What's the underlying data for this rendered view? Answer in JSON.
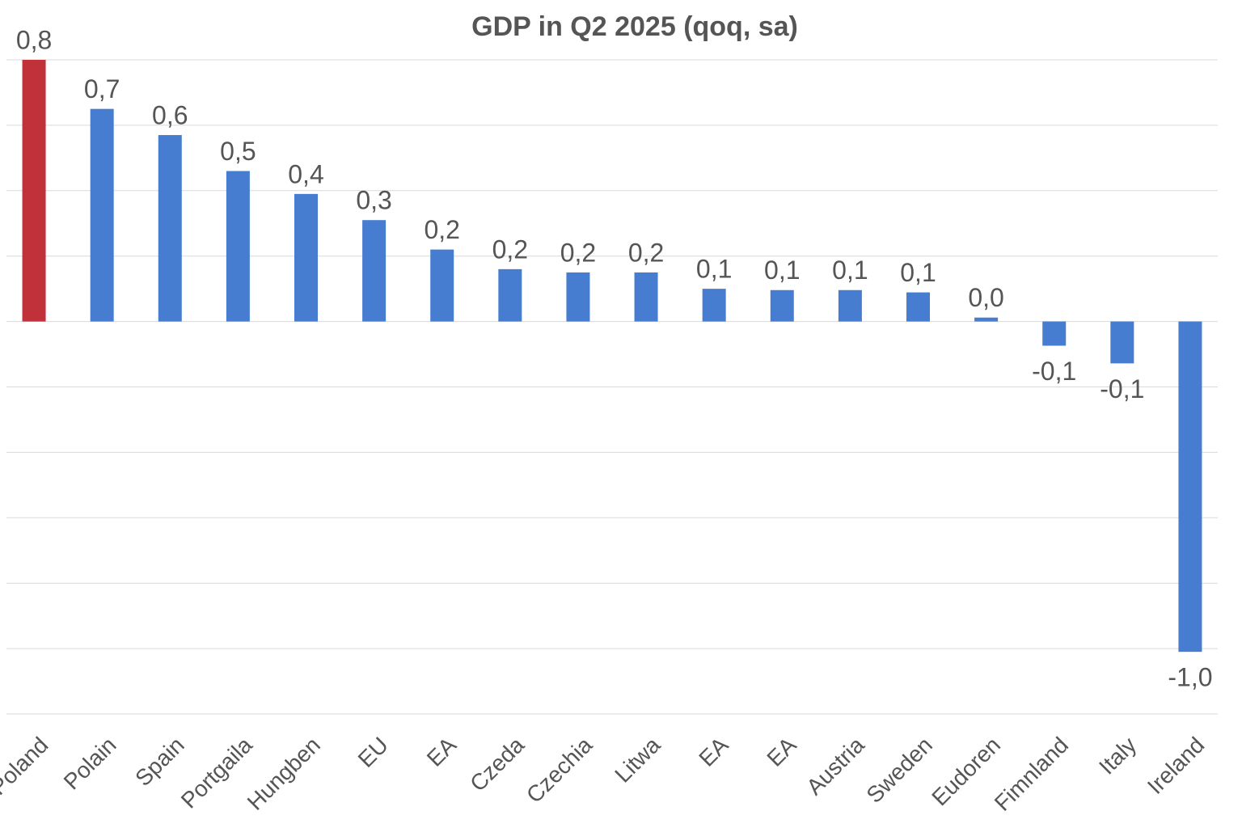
{
  "chart_data": {
    "type": "bar",
    "title": "GDP in Q2 2025 (qoq, sa)",
    "categories": [
      "Poland",
      "Polain",
      "Spain",
      "Portgaila",
      "Hungben",
      "EU",
      "EA",
      "Czeda",
      "Czechia",
      "Litwa",
      "EA",
      "EA",
      "Austria",
      "Sweden",
      "Eudoren",
      "Fimnland",
      "Italy",
      "Ireland"
    ],
    "values": [
      0.8,
      0.65,
      0.57,
      0.46,
      0.39,
      0.31,
      0.22,
      0.16,
      0.15,
      0.15,
      0.1,
      0.096,
      0.096,
      0.089,
      0.012,
      -0.074,
      -0.128,
      -1.01
    ],
    "value_labels": [
      "0,8",
      "0,7",
      "0,6",
      "0,5",
      "0,4",
      "0,3",
      "0,2",
      "0,2",
      "0,2",
      "0,2",
      "0,1",
      "0,1",
      "0,1",
      "0,1",
      "0,0",
      "-0,1",
      "-0,1",
      "-1,0"
    ],
    "colors": [
      "#c0313a",
      "#477dd1",
      "#477dd1",
      "#477dd1",
      "#477dd1",
      "#477dd1",
      "#477dd1",
      "#477dd1",
      "#477dd1",
      "#477dd1",
      "#477dd1",
      "#477dd1",
      "#477dd1",
      "#477dd1",
      "#477dd1",
      "#477dd1",
      "#477dd1",
      "#477dd1"
    ],
    "ylim": [
      -1.2,
      0.8
    ],
    "yticks": [
      -1.2,
      -1,
      -0.8,
      -0.6,
      -0.4,
      -0.2,
      0,
      0.2,
      0.4,
      0.6,
      0.8
    ],
    "grid": true
  }
}
